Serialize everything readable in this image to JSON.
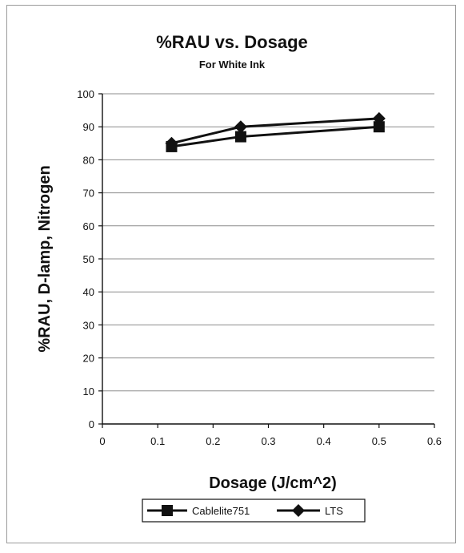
{
  "chart_data": {
    "type": "line",
    "title": "%RAU vs. Dosage",
    "subtitle": "For White Ink",
    "xlabel": "Dosage (J/cm^2)",
    "ylabel": "%RAU, D-lamp, Nitrogen",
    "xlim": [
      0,
      0.6
    ],
    "ylim": [
      0,
      100
    ],
    "x_ticks": [
      "0",
      "0.1",
      "0.2",
      "0.3",
      "0.4",
      "0.5",
      "0.6"
    ],
    "y_ticks": [
      "0",
      "10",
      "20",
      "30",
      "40",
      "50",
      "60",
      "70",
      "80",
      "90",
      "100"
    ],
    "grid": "horizontal",
    "legend_position": "bottom",
    "series": [
      {
        "name": "Cablelite751",
        "marker": "square",
        "x": [
          0.125,
          0.25,
          0.5
        ],
        "y": [
          84,
          87,
          90
        ]
      },
      {
        "name": "LTS",
        "marker": "diamond",
        "x": [
          0.125,
          0.25,
          0.5
        ],
        "y": [
          85,
          90,
          92.5
        ]
      }
    ],
    "colors": {
      "line": "#111111",
      "grid": "#8c8c8c",
      "axis": "#111111"
    }
  }
}
